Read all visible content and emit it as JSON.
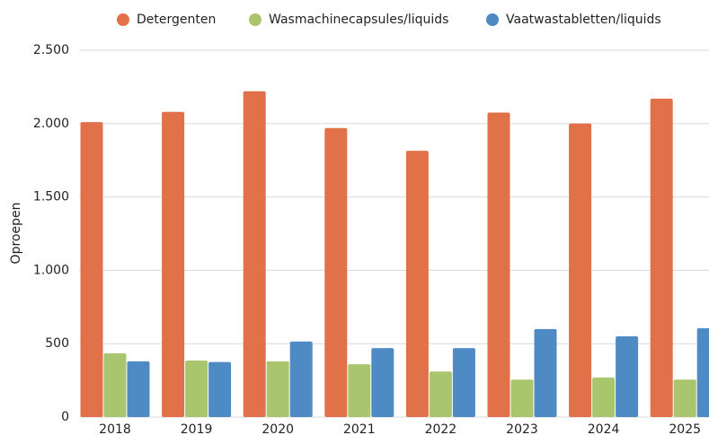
{
  "chart_data": {
    "type": "bar",
    "ylabel": "Oproepen",
    "categories": [
      "2018",
      "2019",
      "2020",
      "2021",
      "2022",
      "2023",
      "2024",
      "2025"
    ],
    "series": [
      {
        "name": "Detergenten",
        "color": "#e07149",
        "values": [
          2010,
          2080,
          2220,
          1970,
          1815,
          2075,
          2000,
          2170
        ]
      },
      {
        "name": "Wasmachinecapsules/liquids",
        "color": "#a9c66f",
        "values": [
          435,
          385,
          380,
          360,
          310,
          255,
          270,
          255
        ]
      },
      {
        "name": "Vaatwastabletten/liquids",
        "color": "#4e8ac4",
        "values": [
          380,
          375,
          515,
          470,
          470,
          600,
          550,
          605
        ]
      }
    ],
    "ylim": [
      0,
      2500
    ],
    "yticks": [
      0,
      500,
      {
        "value": 1000,
        "label": "1.000"
      },
      {
        "value": 1500,
        "label": "1.500"
      },
      {
        "value": 2000,
        "label": "2.000"
      },
      {
        "value": 2500,
        "label": "2.500"
      }
    ],
    "grid": true,
    "legend": "top"
  }
}
